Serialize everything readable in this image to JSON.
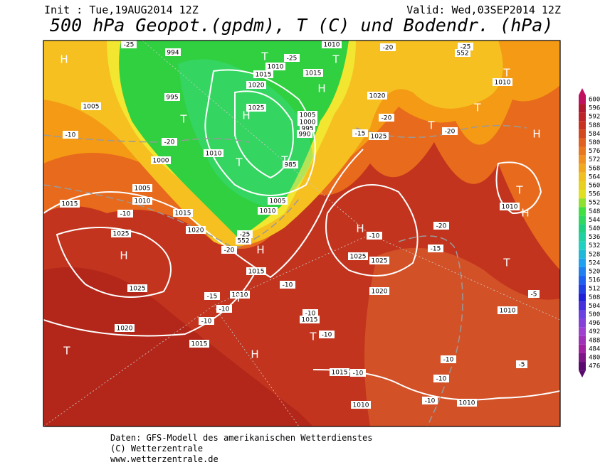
{
  "header": {
    "init": "Init : Tue,19AUG2014 12Z",
    "valid": "Valid: Wed,03SEP2014 12Z",
    "title": "500 hPa Geopot.(gpdm), T (C) und Bodendr. (hPa)"
  },
  "map": {
    "labels": [
      "H",
      "1005",
      "995",
      "994",
      "T",
      "-20",
      "1000",
      "-10",
      "1005",
      "1010",
      "1015",
      "-10",
      "1015",
      "1020",
      "1025",
      "1020",
      "H",
      "1025",
      "1020",
      "T",
      "H",
      "1015",
      "-10",
      "-10",
      "-15",
      "1010",
      "T",
      "1015",
      "H",
      "-20",
      "-25",
      "552",
      "T",
      "1010",
      "1015",
      "1015",
      "1020",
      "H",
      "1025",
      "T",
      "1010",
      "1005",
      "1000",
      "995",
      "990",
      "985",
      "T",
      "H",
      "T",
      "1005",
      "1010",
      "1020",
      "-15",
      "1025",
      "-20",
      "T",
      "-20",
      "T",
      "1010",
      "T",
      "H",
      "T",
      "1010",
      "H",
      "-20",
      "-15",
      "H",
      "-10",
      "1025",
      "1025",
      "T",
      "-5",
      "1010",
      "-10",
      "1020",
      "-10",
      "1015",
      "T",
      "-10",
      "1015",
      "-10",
      "-10",
      "-5",
      "-10",
      "-10",
      "1010",
      "1010",
      "-25",
      "-25",
      "1010",
      "-20",
      "-25",
      "552"
    ]
  },
  "colorbar": {
    "levels": [
      600,
      596,
      592,
      588,
      584,
      580,
      576,
      572,
      568,
      564,
      560,
      556,
      552,
      548,
      544,
      540,
      536,
      532,
      528,
      524,
      520,
      516,
      512,
      508,
      504,
      500,
      496,
      492,
      488,
      484,
      480,
      476
    ]
  },
  "footer": {
    "lines": [
      "Daten: GFS-Modell des amerikanischen Wetterdienstes",
      "(C) Wetterzentrale",
      "www.wetterzentrale.de"
    ]
  }
}
